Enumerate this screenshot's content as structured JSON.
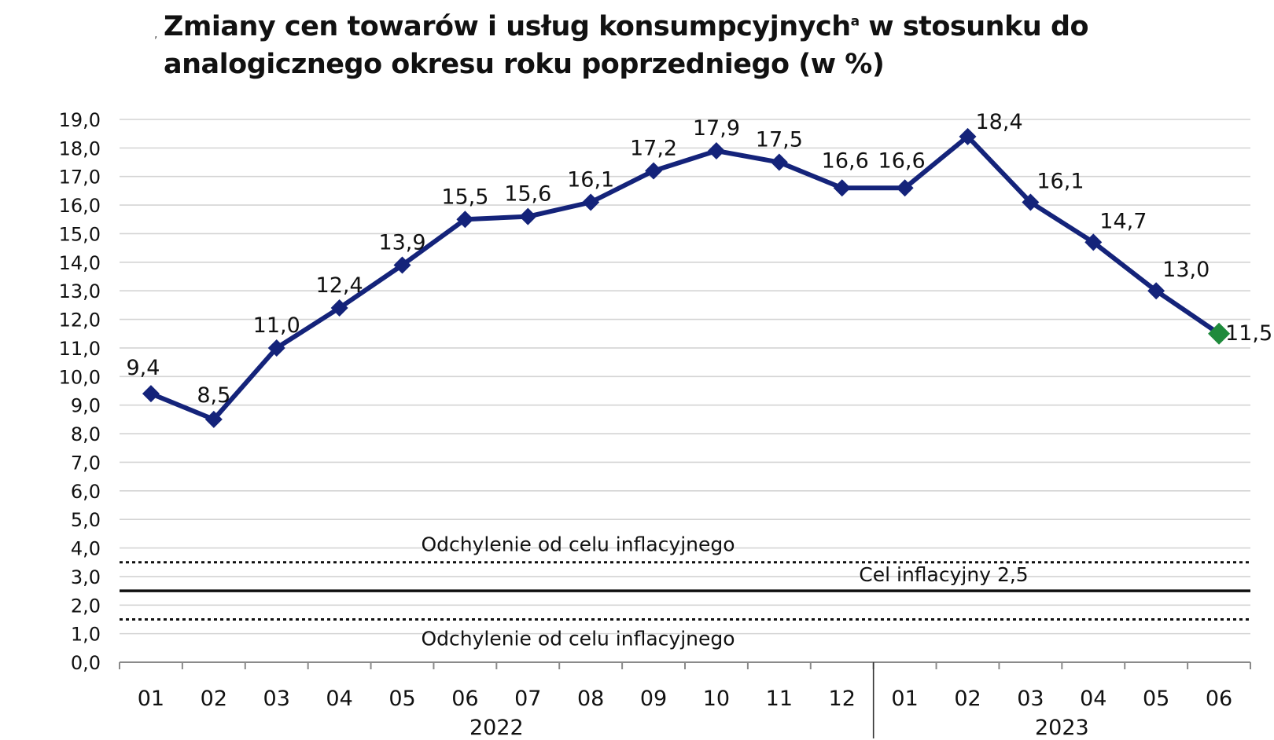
{
  "title": {
    "text": "Zmiany cen towarów i usług konsumpcyjnych",
    "superscript": "a",
    "text_after": " w stosunku do analogicznego okresu roku poprzedniego (w %)",
    "mark": ","
  },
  "chart_data": {
    "type": "line",
    "categories": [
      "01",
      "02",
      "03",
      "04",
      "05",
      "06",
      "07",
      "08",
      "09",
      "10",
      "11",
      "12",
      "01",
      "02",
      "03",
      "04",
      "05",
      "06"
    ],
    "year_groups": [
      {
        "label": "2022",
        "from": 0,
        "to": 11
      },
      {
        "label": "2023",
        "from": 12,
        "to": 17
      }
    ],
    "series": [
      {
        "values": [
          9.4,
          8.5,
          11.0,
          12.4,
          13.9,
          15.5,
          15.6,
          16.1,
          17.2,
          17.9,
          17.5,
          16.6,
          16.6,
          18.4,
          16.1,
          14.7,
          13.0,
          11.5
        ],
        "labels": [
          "9,4",
          "8,5",
          "11,0",
          "12,4",
          "13,9",
          "15,5",
          "15,6",
          "16,1",
          "17,2",
          "17,9",
          "17,5",
          "16,6",
          "16,6",
          "18,4",
          "16,1",
          "14,7",
          "13,0",
          "11,5"
        ],
        "color": "#14237a",
        "highlight_last_color": "#1f8a3c"
      }
    ],
    "y_ticks": [
      "0,0",
      "1,0",
      "2,0",
      "3,0",
      "4,0",
      "5,0",
      "6,0",
      "7,0",
      "8,0",
      "9,0",
      "10,0",
      "11,0",
      "12,0",
      "13,0",
      "14,0",
      "15,0",
      "16,0",
      "17,0",
      "18,0",
      "19,0"
    ],
    "ylim": [
      0,
      19
    ],
    "grid": true,
    "reference_lines": [
      {
        "value": 3.5,
        "style": "dotted",
        "label": "Odchylenie od celu inflacyjnego",
        "label_position": "above"
      },
      {
        "value": 2.5,
        "style": "solid",
        "label": "Cel inflacyjny 2,5",
        "label_position": "above"
      },
      {
        "value": 1.5,
        "style": "dotted",
        "label": "Odchylenie od celu inflacyjnego",
        "label_position": "below"
      }
    ]
  }
}
